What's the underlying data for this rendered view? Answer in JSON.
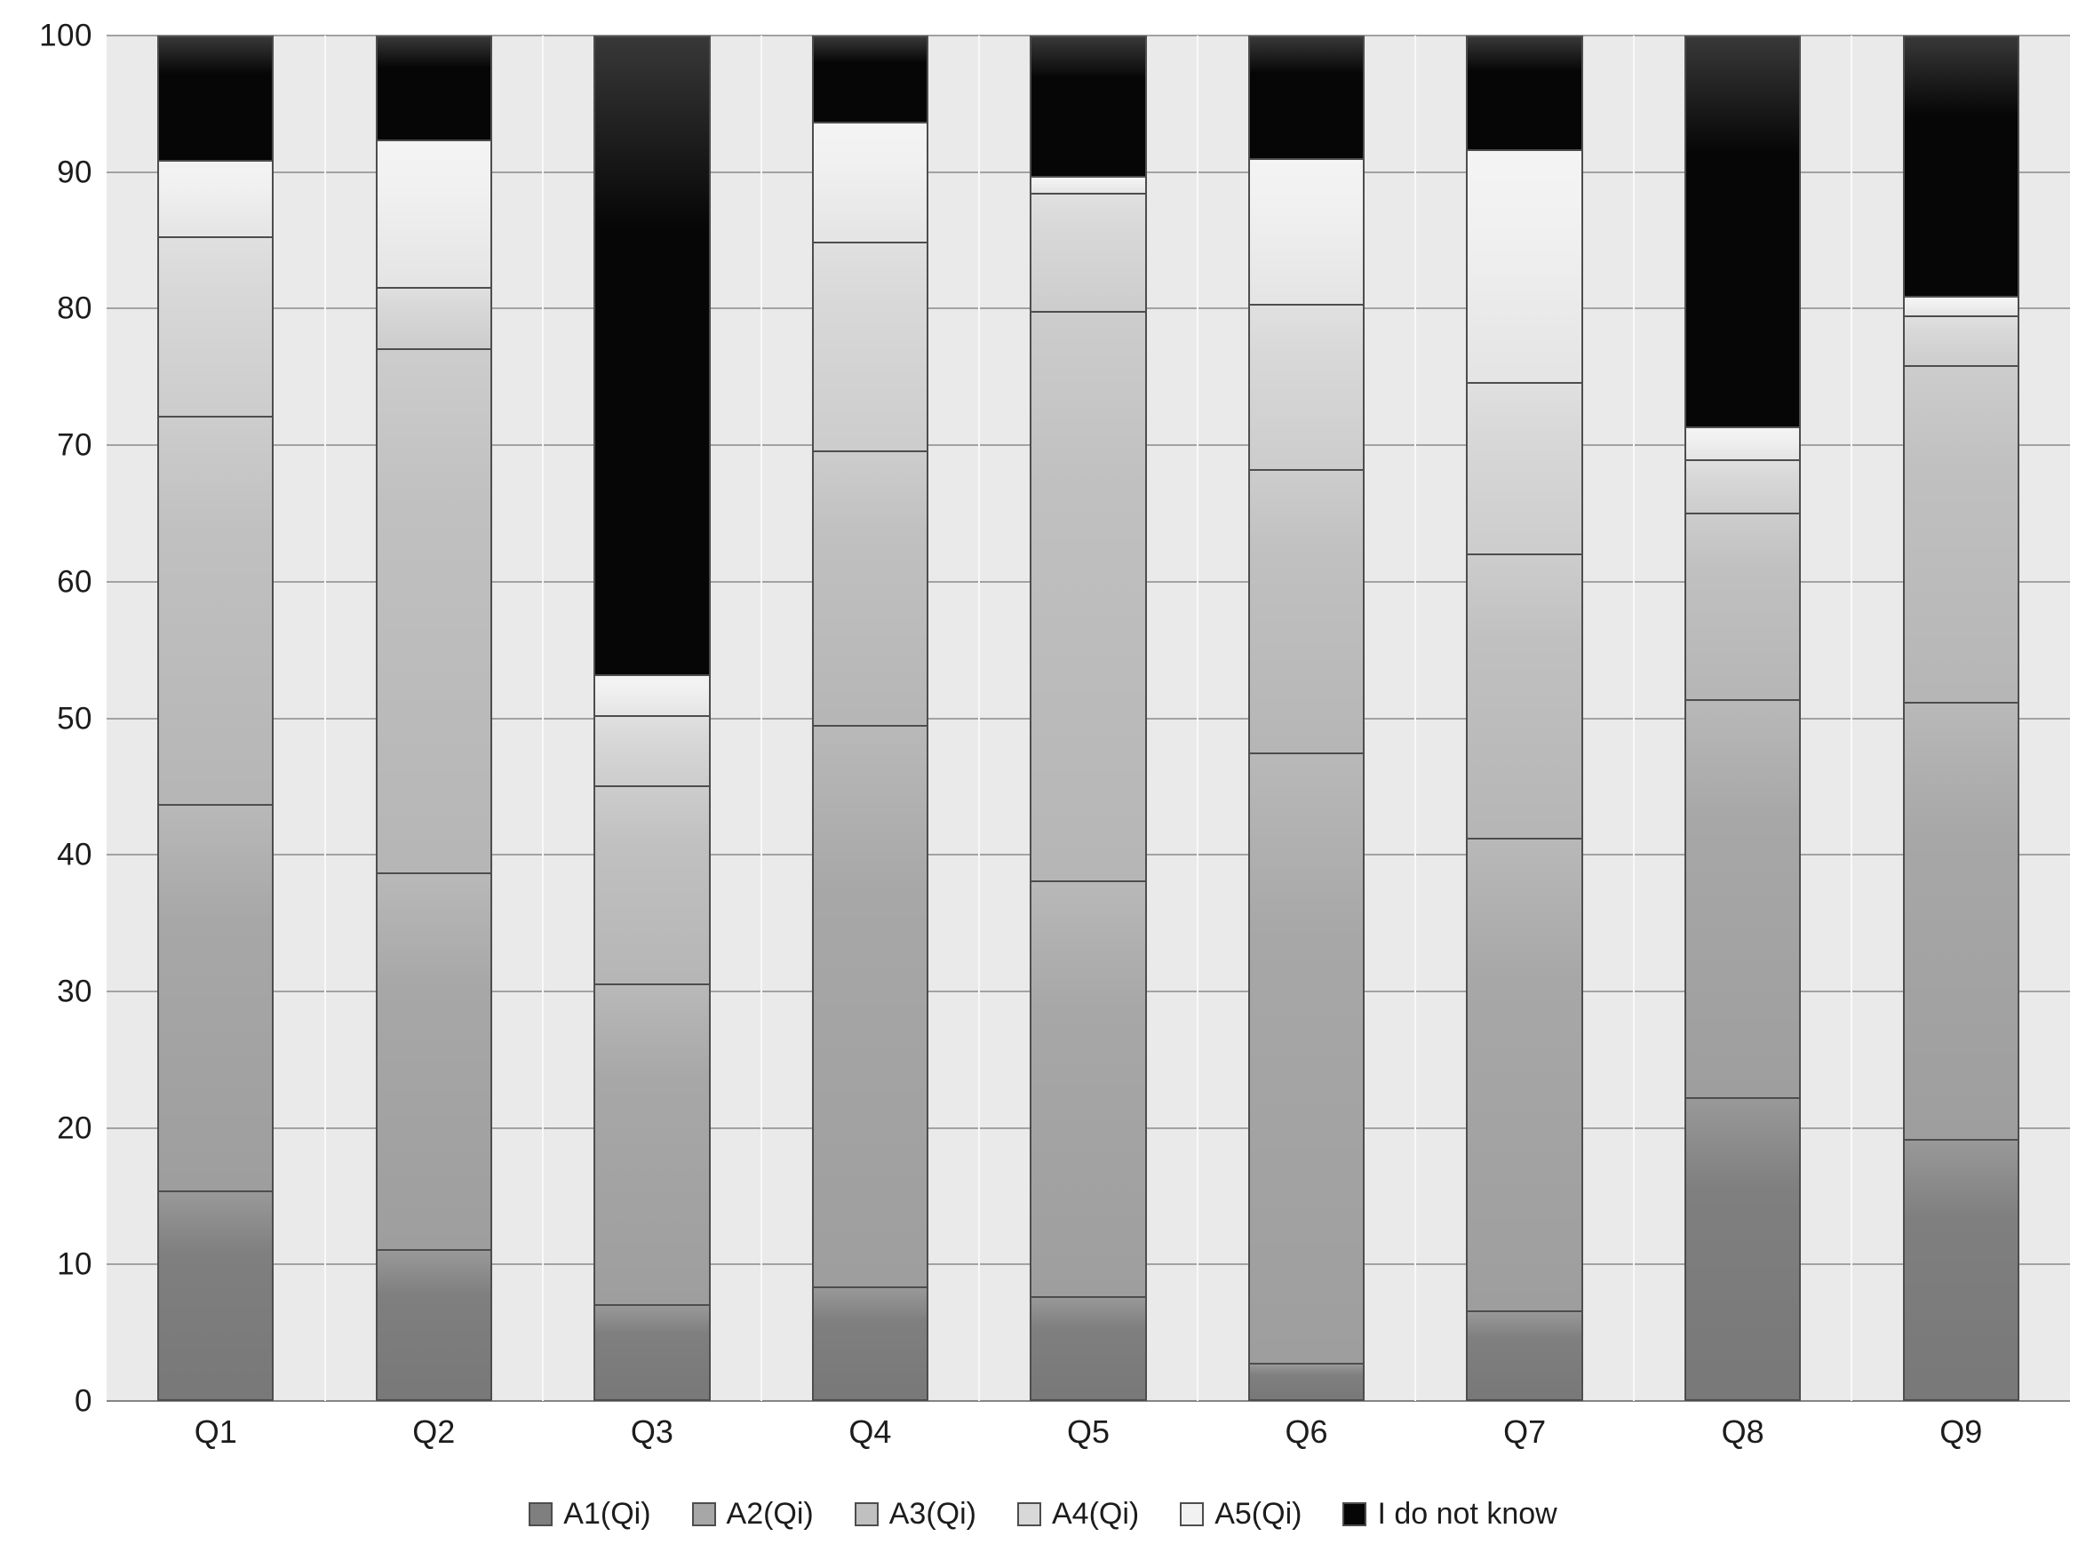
{
  "chart_data": {
    "type": "bar",
    "stacked": true,
    "stack_total": 100,
    "title": "",
    "xlabel": "",
    "ylabel": "",
    "categories": [
      "Q1",
      "Q2",
      "Q3",
      "Q4",
      "Q5",
      "Q6",
      "Q7",
      "Q8",
      "Q9"
    ],
    "series": [
      {
        "name": "A1(Qi)",
        "color": "#7f7f7f",
        "values": [
          15.3,
          11.0,
          7.0,
          8.3,
          7.6,
          2.7,
          6.5,
          22.2,
          19.1
        ]
      },
      {
        "name": "A2(Qi)",
        "color": "#a7a7a7",
        "values": [
          28.4,
          27.7,
          23.5,
          41.2,
          30.5,
          44.8,
          34.7,
          29.2,
          32.1
        ]
      },
      {
        "name": "A3(Qi)",
        "color": "#c0c0c0",
        "values": [
          28.5,
          38.5,
          14.6,
          20.2,
          41.8,
          20.8,
          20.9,
          13.7,
          24.7
        ]
      },
      {
        "name": "A4(Qi)",
        "color": "#d8d8d8",
        "values": [
          13.2,
          4.5,
          5.1,
          15.3,
          8.7,
          12.1,
          12.6,
          3.9,
          3.7
        ]
      },
      {
        "name": "A5(Qi)",
        "color": "#f1f1f1",
        "values": [
          5.6,
          10.8,
          3.0,
          8.8,
          1.2,
          10.7,
          17.1,
          2.4,
          1.4
        ]
      },
      {
        "name": "I do not know",
        "color": "#060606",
        "values": [
          9.0,
          7.5,
          46.8,
          6.2,
          10.2,
          8.9,
          8.2,
          28.6,
          19.0
        ]
      }
    ],
    "ylim": [
      0,
      100
    ],
    "yticks": [
      0,
      10,
      20,
      30,
      40,
      50,
      60,
      70,
      80,
      90,
      100
    ],
    "grid": true,
    "legend_position": "bottom"
  },
  "colors": {
    "plot_background": "#eaeaea",
    "gridline": "#a2a2a2",
    "bar_border": "#4d4d4d",
    "text": "#1c1c1c"
  }
}
